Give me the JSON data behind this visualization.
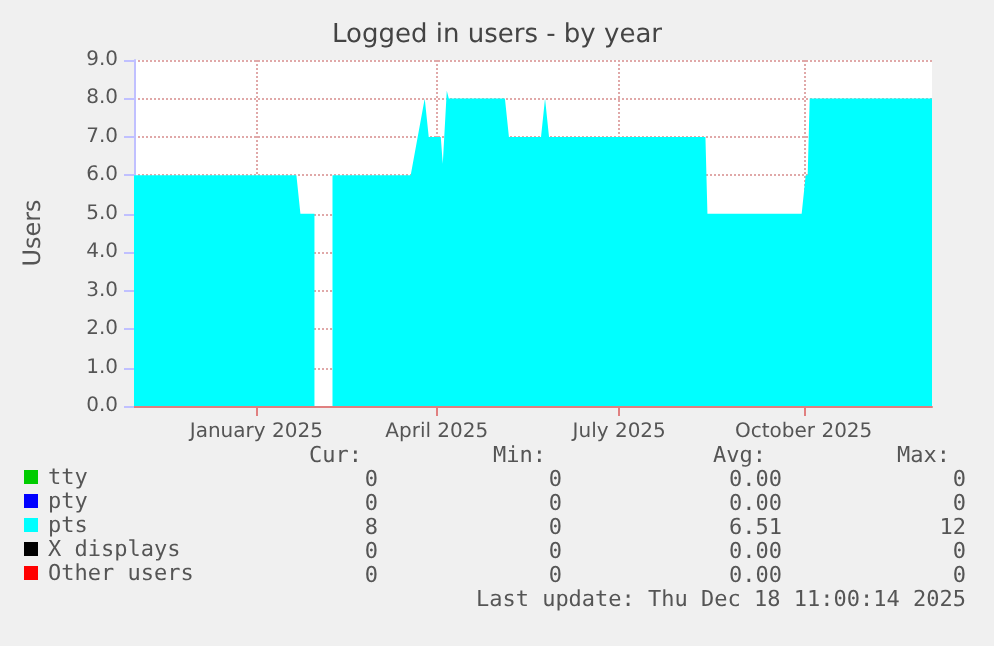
{
  "chart_data": {
    "type": "area",
    "title": "Logged in users - by year",
    "ylabel": "Users",
    "xlim": [
      "2024-11-15",
      "2025-12-18"
    ],
    "xticks": [
      {
        "value": "2025-01-15",
        "label": "January 2025"
      },
      {
        "value": "2025-04-15",
        "label": "April 2025"
      },
      {
        "value": "2025-07-15",
        "label": "July 2025"
      },
      {
        "value": "2025-10-15",
        "label": "October 2025"
      }
    ],
    "ylim": [
      0,
      9
    ],
    "yticks": [
      {
        "value": 0,
        "label": "0.0"
      },
      {
        "value": 1,
        "label": "1.0"
      },
      {
        "value": 2,
        "label": "2.0"
      },
      {
        "value": 3,
        "label": "3.0"
      },
      {
        "value": 4,
        "label": "4.0"
      },
      {
        "value": 5,
        "label": "5.0"
      },
      {
        "value": 6,
        "label": "6.0"
      },
      {
        "value": 7,
        "label": "7.0"
      },
      {
        "value": 8,
        "label": "8.0"
      },
      {
        "value": 9,
        "label": "9.0"
      }
    ],
    "grid": true,
    "legend": "bottom left",
    "series": [
      {
        "name": "tty",
        "type": "line",
        "color": "#00cc00"
      },
      {
        "name": "pty",
        "type": "line",
        "color": "#0000ff"
      },
      {
        "name": "pts",
        "color": "#00ffff",
        "x": [
          "2024-11-15",
          "2025-02-04",
          "2025-02-06",
          "2025-02-13",
          "2025-02-17",
          "2025-02-22",
          "2025-04-02",
          "2025-04-09",
          "2025-04-11",
          "2025-04-17",
          "2025-04-18",
          "2025-04-20",
          "2025-04-21",
          "2025-05-19",
          "2025-05-21",
          "2025-06-06",
          "2025-06-08",
          "2025-06-10",
          "2025-08-27",
          "2025-08-28",
          "2025-10-14",
          "2025-10-16",
          "2025-10-17",
          "2025-10-18",
          "2025-12-18"
        ],
        "values": [
          6,
          6,
          5,
          5,
          null,
          6,
          6,
          8,
          7,
          7,
          6.3,
          8.2,
          8,
          8,
          7,
          7,
          8,
          7,
          7,
          5,
          5,
          6,
          6,
          8,
          8
        ]
      },
      {
        "name": "X displays",
        "type": "line",
        "color": "#000000"
      },
      {
        "name": "Other users",
        "type": "line",
        "color": "#ff0000"
      }
    ],
    "annotations": [
      "Cur:",
      "Min:",
      "Avg:",
      "Max:",
      "0",
      "0",
      "0.00",
      "0",
      "0",
      "0",
      "0.00",
      "0",
      "8",
      "0",
      "6.51",
      "12",
      "0",
      "0",
      "0.00",
      "0",
      "0",
      "0",
      "0.00",
      "0",
      "Last update: Thu Dec 18 11:00:14 2025"
    ]
  }
}
